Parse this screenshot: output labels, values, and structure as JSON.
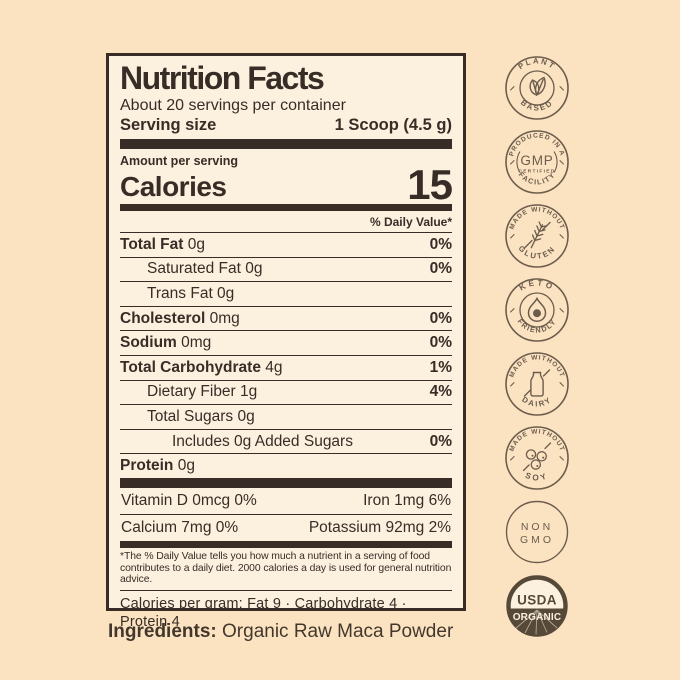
{
  "colors": {
    "page_bg": "#fbe3c2",
    "label_bg": "#fcf1df",
    "ink": "#382d26",
    "badge_brown": "#6c5c4c",
    "usda_brown": "#564938"
  },
  "label": {
    "title": "Nutrition Facts",
    "servings_per_container": "About 20 servings per container",
    "serving_size_label": "Serving size",
    "serving_size_value": "1 Scoop (4.5 g)",
    "amount_per_serving": "Amount per serving",
    "calories_label": "Calories",
    "calories_value": "15",
    "daily_value_header": "% Daily Value*",
    "rows": [
      {
        "name": "Total Fat",
        "amount": "0g",
        "daily_value": "0%",
        "bold": true,
        "indent": 0
      },
      {
        "name": "Saturated Fat",
        "amount": "0g",
        "daily_value": "0%",
        "bold": false,
        "indent": 1
      },
      {
        "name": "Trans Fat",
        "amount": "0g",
        "daily_value": "",
        "bold": false,
        "indent": 1
      },
      {
        "name": "Cholesterol",
        "amount": "0mg",
        "daily_value": "0%",
        "bold": true,
        "indent": 0
      },
      {
        "name": "Sodium",
        "amount": "0mg",
        "daily_value": "0%",
        "bold": true,
        "indent": 0
      },
      {
        "name": "Total Carbohydrate",
        "amount": "4g",
        "daily_value": "1%",
        "bold": true,
        "indent": 0
      },
      {
        "name": "Dietary Fiber",
        "amount": "1g",
        "daily_value": "4%",
        "bold": false,
        "indent": 1
      },
      {
        "name": "Total Sugars",
        "amount": "0g",
        "daily_value": "",
        "bold": false,
        "indent": 1
      },
      {
        "name": "Includes 0g Added Sugars",
        "amount": "",
        "daily_value": "0%",
        "bold": false,
        "indent": 2
      },
      {
        "name": "Protein",
        "amount": "0g",
        "daily_value": "",
        "bold": true,
        "indent": 0
      }
    ],
    "micronutrients": [
      {
        "left": "Vitamin D 0mcg  0%",
        "right": "Iron 1mg  6%"
      },
      {
        "left": "Calcium 7mg  0%",
        "right": "Potassium 92mg  2%"
      }
    ],
    "footnote": "*The % Daily Value tells you how much a nutrient in a serving of food contributes to a daily diet. 2000 calories a day is used for general nutrition advice.",
    "calories_per_gram": "Calories per gram: Fat 9 · Carbohydrate 4 · Protein 4"
  },
  "ingredients": {
    "label": "Ingredients:",
    "value": "Organic Raw Maca Powder"
  },
  "badges": [
    {
      "name": "plant-based",
      "type": "arc",
      "top": "PLANT",
      "bottom": "BASED",
      "icon": "leaf-icon",
      "inner_circle": true
    },
    {
      "name": "gmp-certified",
      "type": "gmp",
      "top": "PRODUCED IN A",
      "bottom": "FACILITY",
      "center_large": "GMP",
      "center_small": "CERTIFIED"
    },
    {
      "name": "made-without-gluten",
      "type": "arc",
      "top": "MADE WITHOUT",
      "bottom": "GLUTEN",
      "icon": "wheat-icon",
      "inner_circle": false
    },
    {
      "name": "keto-friendly",
      "type": "arc",
      "top": "KETO",
      "bottom": "FRIENDLY",
      "icon": "avocado-icon",
      "inner_circle": true
    },
    {
      "name": "made-without-dairy",
      "type": "arc",
      "top": "MADE WITHOUT",
      "bottom": "DAIRY",
      "icon": "milk-bottle-icon",
      "inner_circle": false
    },
    {
      "name": "made-without-soy",
      "type": "arc",
      "top": "MADE WITHOUT",
      "bottom": "SOY",
      "icon": "soybeans-icon",
      "inner_circle": false
    },
    {
      "name": "non-gmo",
      "type": "plain",
      "line1": "NON",
      "line2": "GMO"
    },
    {
      "name": "usda-organic",
      "type": "usda",
      "line1": "USDA",
      "line2": "ORGANIC"
    }
  ]
}
